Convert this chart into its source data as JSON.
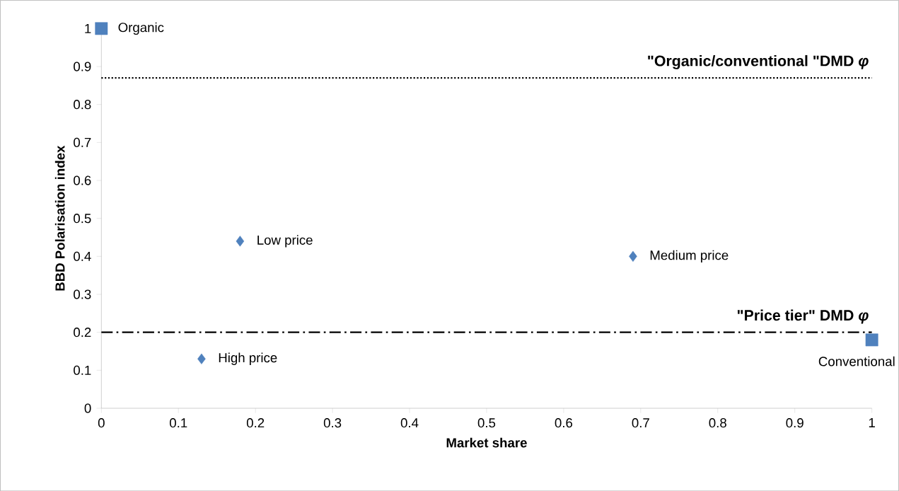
{
  "chart_data": {
    "type": "scatter",
    "xlabel": "Market share",
    "ylabel": "BBD Polarisation index",
    "series": [
      {
        "marker": "square",
        "color": "#4f81bd",
        "x": [
          0,
          1
        ],
        "values": [
          1,
          0.18
        ]
      },
      {
        "marker": "diamond",
        "color": "#4f81bd",
        "x": [
          0.18,
          0.69,
          0.13
        ],
        "values": [
          0.44,
          0.4,
          0.13
        ]
      }
    ],
    "annotations": [
      {
        "text": "Organic",
        "x": 0,
        "y": 1
      },
      {
        "text": "Conventional",
        "x": 1,
        "y": 0.18
      },
      {
        "text": "Low price",
        "x": 0.18,
        "y": 0.44
      },
      {
        "text": "Medium price",
        "x": 0.69,
        "y": 0.4
      },
      {
        "text": "High price",
        "x": 0.13,
        "y": 0.13
      }
    ],
    "ref_lines": [
      {
        "axis": "y",
        "value": 0.87,
        "label": "\"Organic/conventional \"DMD *φ*",
        "color": "#000000",
        "line_style": "dotted"
      },
      {
        "axis": "y",
        "value": 0.2,
        "label": "\"Price tier\" DMD *φ*",
        "color": "#000000",
        "line_style": "dashdot"
      }
    ],
    "xlim": [
      0,
      1
    ],
    "ylim": [
      0,
      1
    ],
    "xticks": [
      0,
      0.1,
      0.2,
      0.3,
      0.4,
      0.5,
      0.6,
      0.7,
      0.8,
      0.9,
      1
    ],
    "yticks": [
      0,
      0.1,
      0.2,
      0.3,
      0.4,
      0.5,
      0.6,
      0.7,
      0.8,
      0.9,
      1
    ],
    "grid": false
  }
}
